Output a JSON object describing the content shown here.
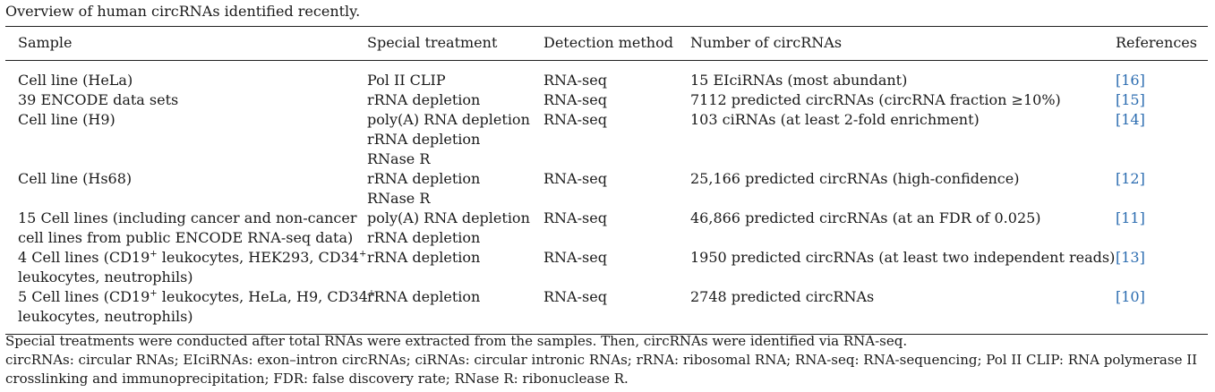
{
  "caption": "Overview of human circRNAs identified recently.",
  "table": {
    "headers": {
      "sample": "Sample",
      "treatment": "Special treatment",
      "method": "Detection method",
      "number": "Number of circRNAs",
      "refs": "References"
    },
    "rows": [
      {
        "sample_lines": [
          "Cell line (HeLa)"
        ],
        "treatment_lines": [
          "Pol II CLIP"
        ],
        "method": "RNA-seq",
        "number": "15 EIciRNAs (most abundant)",
        "ref": "[16]"
      },
      {
        "sample_lines": [
          "39 ENCODE data sets"
        ],
        "treatment_lines": [
          "rRNA depletion"
        ],
        "method": "RNA-seq",
        "number": "7112 predicted circRNAs (circRNA fraction ≥10%)",
        "ref": "[15]"
      },
      {
        "sample_lines": [
          "Cell line (H9)"
        ],
        "treatment_lines": [
          "poly(A) RNA depletion",
          "rRNA depletion",
          "RNase R"
        ],
        "method": "RNA-seq",
        "number": "103 ciRNAs (at least 2-fold enrichment)",
        "ref": "[14]"
      },
      {
        "sample_lines": [
          "Cell line (Hs68)"
        ],
        "treatment_lines": [
          "rRNA depletion",
          "RNase R"
        ],
        "method": "RNA-seq",
        "number": "25,166 predicted circRNAs (high-confidence)",
        "ref": "[12]"
      },
      {
        "sample_lines": [
          "15 Cell lines (including cancer and non-cancer",
          "cell lines from public ENCODE RNA-seq data)"
        ],
        "treatment_lines": [
          "poly(A) RNA depletion",
          "rRNA depletion"
        ],
        "method": "RNA-seq",
        "number": "46,866 predicted circRNAs (at an FDR of 0.025)",
        "ref": "[11]"
      },
      {
        "sample_parts": {
          "a": "4 Cell lines (CD19",
          "sup1": "+",
          "b": " leukocytes, HEK293, CD34",
          "sup2": "+",
          "c": "leukocytes, neutrophils)"
        },
        "treatment_lines": [
          "rRNA depletion"
        ],
        "method": "RNA-seq",
        "number": "1950 predicted circRNAs (at least two independent reads)",
        "ref": "[13]"
      },
      {
        "sample_parts": {
          "a": "5 Cell lines (CD19",
          "sup1": "+",
          "b": " leukocytes, HeLa, H9, CD34",
          "sup2": "+",
          "c": "leukocytes, neutrophils)"
        },
        "treatment_lines": [
          "rRNA depletion"
        ],
        "method": "RNA-seq",
        "number": "2748 predicted circRNAs",
        "ref": "[10]"
      }
    ]
  },
  "notes": {
    "line1": "Special treatments were conducted after total RNAs were extracted from the samples. Then, circRNAs were identified via RNA-seq.",
    "line2": "circRNAs: circular RNAs; EIciRNAs: exon–intron circRNAs; ciRNAs: circular intronic RNAs; rRNA: ribosomal RNA; RNA-seq: RNA-sequencing; Pol II CLIP: RNA polymerase II crosslinking and immunoprecipitation; FDR: false discovery rate; RNase R: ribonuclease R."
  },
  "colors": {
    "text": "#1a1a1a",
    "reference_link": "#2b6cb0",
    "rule": "#222222"
  }
}
